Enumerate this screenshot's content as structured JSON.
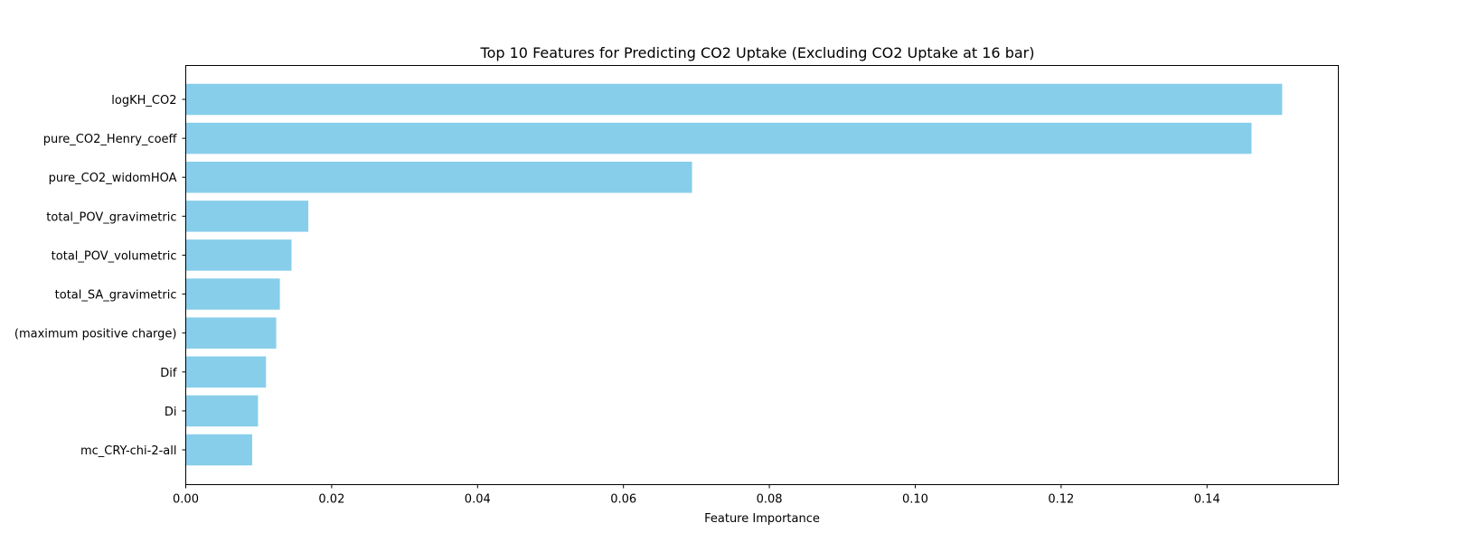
{
  "chart_data": {
    "type": "bar",
    "orientation": "horizontal",
    "title": "Top 10 Features for Predicting CO2 Uptake (Excluding CO2 Uptake at 16 bar)",
    "xlabel": "Feature Importance",
    "ylabel": "",
    "categories": [
      "logKH_CO2",
      "pure_CO2_Henry_coeff",
      "pure_CO2_widomHOA",
      "total_POV_gravimetric",
      "total_POV_volumetric",
      "total_SA_gravimetric",
      "(maximum positive charge)",
      "Dif",
      "Di",
      "mc_CRY-chi-2-all"
    ],
    "values": [
      0.1503,
      0.1461,
      0.0694,
      0.0168,
      0.0145,
      0.0129,
      0.0124,
      0.011,
      0.0099,
      0.0091
    ],
    "xlim": [
      0,
      0.158
    ],
    "xticks": [
      0.0,
      0.02,
      0.04,
      0.06,
      0.08,
      0.1,
      0.12,
      0.14
    ],
    "xtick_labels": [
      "0.00",
      "0.02",
      "0.04",
      "0.06",
      "0.08",
      "0.10",
      "0.12",
      "0.14"
    ],
    "bar_color": "#87ceeb",
    "grid": false,
    "legend": "none"
  }
}
